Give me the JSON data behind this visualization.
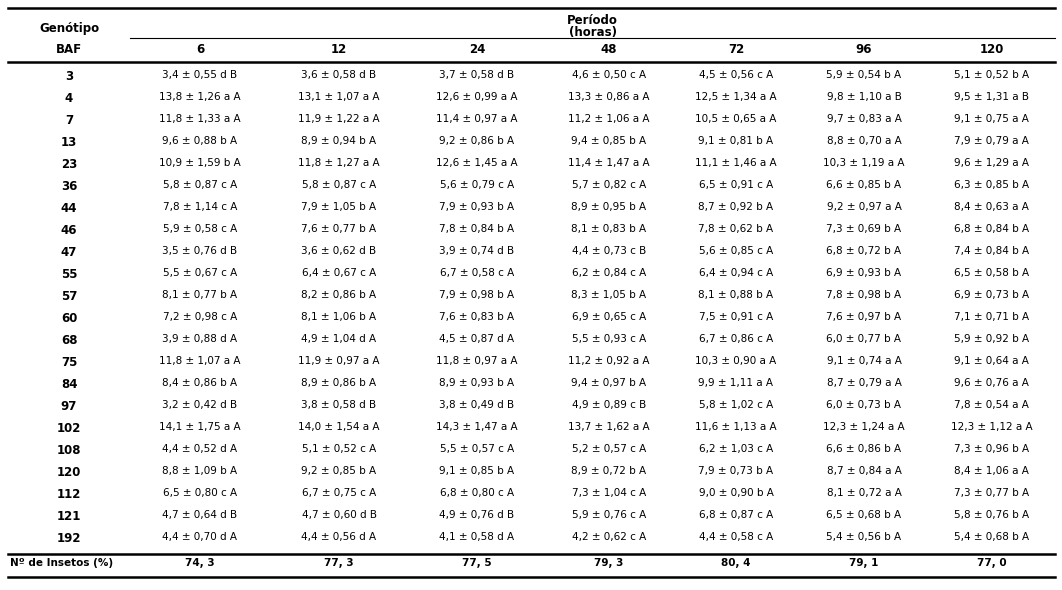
{
  "title_line1": "Período",
  "title_line2": "(horas)",
  "col_headers": [
    "6",
    "12",
    "24",
    "48",
    "72",
    "96",
    "120"
  ],
  "rows": [
    [
      "3",
      "3,4 ± 0,55 d B",
      "3,6 ± 0,58 d B",
      "3,7 ± 0,58 d B",
      "4,6 ± 0,50 c A",
      "4,5 ± 0,56 c A",
      "5,9 ± 0,54 b A",
      "5,1 ± 0,52 b A"
    ],
    [
      "4",
      "13,8 ± 1,26 a A",
      "13,1 ± 1,07 a A",
      "12,6 ± 0,99 a A",
      "13,3 ± 0,86 a A",
      "12,5 ± 1,34 a A",
      "9,8 ± 1,10 a B",
      "9,5 ± 1,31 a B"
    ],
    [
      "7",
      "11,8 ± 1,33 a A",
      "11,9 ± 1,22 a A",
      "11,4 ± 0,97 a A",
      "11,2 ± 1,06 a A",
      "10,5 ± 0,65 a A",
      "9,7 ± 0,83 a A",
      "9,1 ± 0,75 a A"
    ],
    [
      "13",
      "9,6 ± 0,88 b A",
      "8,9 ± 0,94 b A",
      "9,2 ± 0,86 b A",
      "9,4 ± 0,85 b A",
      "9,1 ± 0,81 b A",
      "8,8 ± 0,70 a A",
      "7,9 ± 0,79 a A"
    ],
    [
      "23",
      "10,9 ± 1,59 b A",
      "11,8 ± 1,27 a A",
      "12,6 ± 1,45 a A",
      "11,4 ± 1,47 a A",
      "11,1 ± 1,46 a A",
      "10,3 ± 1,19 a A",
      "9,6 ± 1,29 a A"
    ],
    [
      "36",
      "5,8 ± 0,87 c A",
      "5,8 ± 0,87 c A",
      "5,6 ± 0,79 c A",
      "5,7 ± 0,82 c A",
      "6,5 ± 0,91 c A",
      "6,6 ± 0,85 b A",
      "6,3 ± 0,85 b A"
    ],
    [
      "44",
      "7,8 ± 1,14 c A",
      "7,9 ± 1,05 b A",
      "7,9 ± 0,93 b A",
      "8,9 ± 0,95 b A",
      "8,7 ± 0,92 b A",
      "9,2 ± 0,97 a A",
      "8,4 ± 0,63 a A"
    ],
    [
      "46",
      "5,9 ± 0,58 c A",
      "7,6 ± 0,77 b A",
      "7,8 ± 0,84 b A",
      "8,1 ± 0,83 b A",
      "7,8 ± 0,62 b A",
      "7,3 ± 0,69 b A",
      "6,8 ± 0,84 b A"
    ],
    [
      "47",
      "3,5 ± 0,76 d B",
      "3,6 ± 0,62 d B",
      "3,9 ± 0,74 d B",
      "4,4 ± 0,73 c B",
      "5,6 ± 0,85 c A",
      "6,8 ± 0,72 b A",
      "7,4 ± 0,84 b A"
    ],
    [
      "55",
      "5,5 ± 0,67 c A",
      "6,4 ± 0,67 c A",
      "6,7 ± 0,58 c A",
      "6,2 ± 0,84 c A",
      "6,4 ± 0,94 c A",
      "6,9 ± 0,93 b A",
      "6,5 ± 0,58 b A"
    ],
    [
      "57",
      "8,1 ± 0,77 b A",
      "8,2 ± 0,86 b A",
      "7,9 ± 0,98 b A",
      "8,3 ± 1,05 b A",
      "8,1 ± 0,88 b A",
      "7,8 ± 0,98 b A",
      "6,9 ± 0,73 b A"
    ],
    [
      "60",
      "7,2 ± 0,98 c A",
      "8,1 ± 1,06 b A",
      "7,6 ± 0,83 b A",
      "6,9 ± 0,65 c A",
      "7,5 ± 0,91 c A",
      "7,6 ± 0,97 b A",
      "7,1 ± 0,71 b A"
    ],
    [
      "68",
      "3,9 ± 0,88 d A",
      "4,9 ± 1,04 d A",
      "4,5 ± 0,87 d A",
      "5,5 ± 0,93 c A",
      "6,7 ± 0,86 c A",
      "6,0 ± 0,77 b A",
      "5,9 ± 0,92 b A"
    ],
    [
      "75",
      "11,8 ± 1,07 a A",
      "11,9 ± 0,97 a A",
      "11,8 ± 0,97 a A",
      "11,2 ± 0,92 a A",
      "10,3 ± 0,90 a A",
      "9,1 ± 0,74 a A",
      "9,1 ± 0,64 a A"
    ],
    [
      "84",
      "8,4 ± 0,86 b A",
      "8,9 ± 0,86 b A",
      "8,9 ± 0,93 b A",
      "9,4 ± 0,97 b A",
      "9,9 ± 1,11 a A",
      "8,7 ± 0,79 a A",
      "9,6 ± 0,76 a A"
    ],
    [
      "97",
      "3,2 ± 0,42 d B",
      "3,8 ± 0,58 d B",
      "3,8 ± 0,49 d B",
      "4,9 ± 0,89 c B",
      "5,8 ± 1,02 c A",
      "6,0 ± 0,73 b A",
      "7,8 ± 0,54 a A"
    ],
    [
      "102",
      "14,1 ± 1,75 a A",
      "14,0 ± 1,54 a A",
      "14,3 ± 1,47 a A",
      "13,7 ± 1,62 a A",
      "11,6 ± 1,13 a A",
      "12,3 ± 1,24 a A",
      "12,3 ± 1,12 a A"
    ],
    [
      "108",
      "4,4 ± 0,52 d A",
      "5,1 ± 0,52 c A",
      "5,5 ± 0,57 c A",
      "5,2 ± 0,57 c A",
      "6,2 ± 1,03 c A",
      "6,6 ± 0,86 b A",
      "7,3 ± 0,96 b A"
    ],
    [
      "120",
      "8,8 ± 1,09 b A",
      "9,2 ± 0,85 b A",
      "9,1 ± 0,85 b A",
      "8,9 ± 0,72 b A",
      "7,9 ± 0,73 b A",
      "8,7 ± 0,84 a A",
      "8,4 ± 1,06 a A"
    ],
    [
      "112",
      "6,5 ± 0,80 c A",
      "6,7 ± 0,75 c A",
      "6,8 ± 0,80 c A",
      "7,3 ± 1,04 c A",
      "9,0 ± 0,90 b A",
      "8,1 ± 0,72 a A",
      "7,3 ± 0,77 b A"
    ],
    [
      "121",
      "4,7 ± 0,64 d B",
      "4,7 ± 0,60 d B",
      "4,9 ± 0,76 d B",
      "5,9 ± 0,76 c A",
      "6,8 ± 0,87 c A",
      "6,5 ± 0,68 b A",
      "5,8 ± 0,76 b A"
    ],
    [
      "192",
      "4,4 ± 0,70 d A",
      "4,4 ± 0,56 d A",
      "4,1 ± 0,58 d A",
      "4,2 ± 0,62 c A",
      "4,4 ± 0,58 c A",
      "5,4 ± 0,56 b A",
      "5,4 ± 0,68 b A"
    ]
  ],
  "footer_label": "Nº de Insetos (%)",
  "footer_values": [
    "74, 3",
    "77, 3",
    "77, 5",
    "79, 3",
    "80, 4",
    "79, 1",
    "77, 0"
  ],
  "bg_color": "#ffffff",
  "text_color": "#000000"
}
